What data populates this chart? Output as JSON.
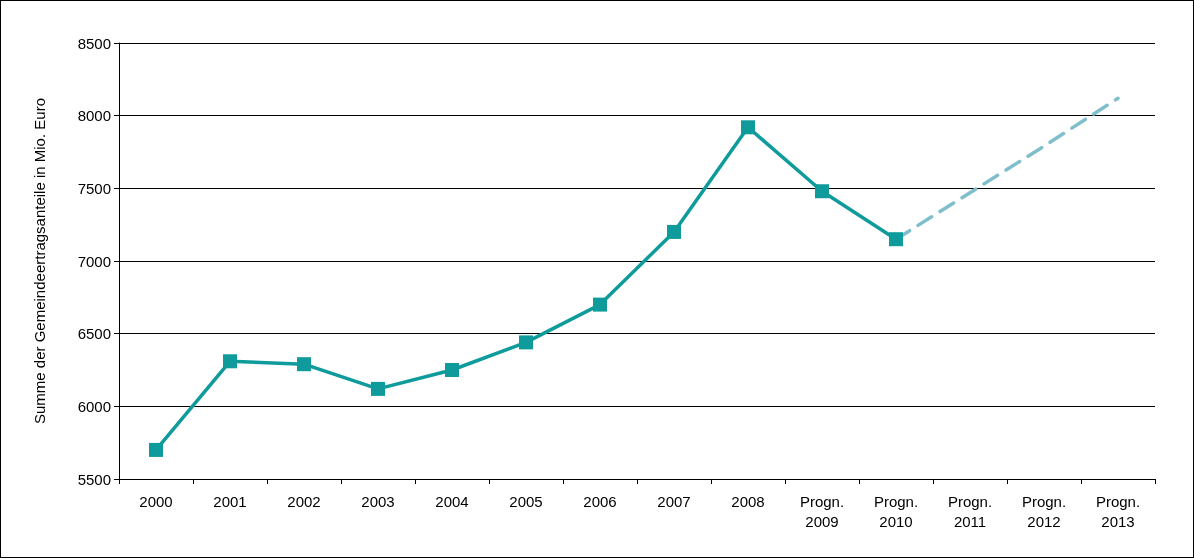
{
  "chart_data": {
    "type": "line",
    "ylabel": "Summe der Gemeindeertragsanteile in Mio. Euro",
    "categories": [
      "2000",
      "2001",
      "2002",
      "2003",
      "2004",
      "2005",
      "2006",
      "2007",
      "2008",
      "Progn.\n2009",
      "Progn.\n2010",
      "Progn.\n2011",
      "Progn.\n2012",
      "Progn.\n2013"
    ],
    "series": [
      {
        "color": "#0f9b9b",
        "marker": "square",
        "line_style": "solid",
        "values": [
          5700,
          6310,
          6290,
          6120,
          6250,
          6440,
          6700,
          7200,
          7920,
          7480,
          7150,
          null,
          null,
          null
        ]
      },
      {
        "color": "#7fbfcc",
        "marker": "none",
        "line_style": "dashed",
        "values": [
          null,
          null,
          null,
          null,
          null,
          null,
          null,
          null,
          null,
          null,
          7150,
          7470,
          7790,
          8120
        ]
      }
    ],
    "ylim": [
      5500,
      8500
    ],
    "yticks": [
      5500,
      6000,
      6500,
      7000,
      7500,
      8000,
      8500
    ],
    "grid": "y"
  }
}
